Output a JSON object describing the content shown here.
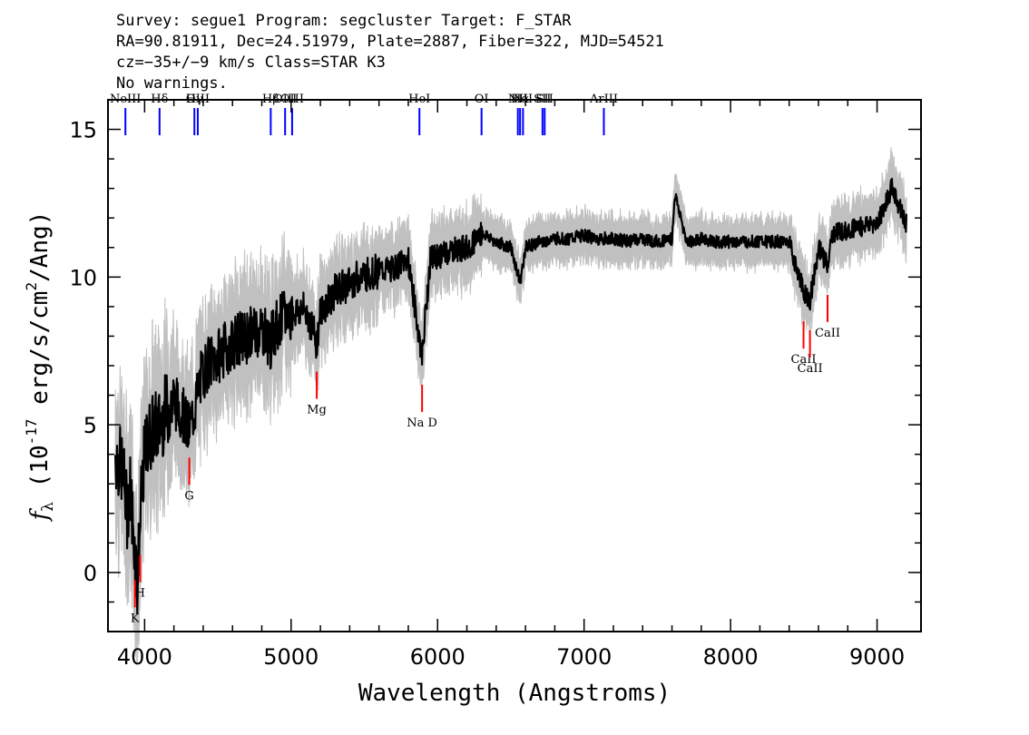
{
  "header": {
    "line1": "Survey: segue1 Program: segcluster Target: F_STAR",
    "line2": "RA=90.81911, Dec=24.51979, Plate=2887, Fiber=322, MJD=54521",
    "line3": "cz=−35+/−9 km/s Class=STAR K3",
    "line4": "No warnings."
  },
  "chart_data": {
    "type": "line",
    "xlabel": "Wavelength (Angstroms)",
    "ylabel": "f_λ (10^-17 erg/s/cm^2/Ang)",
    "xlim": [
      3750,
      9300
    ],
    "ylim": [
      -2,
      16
    ],
    "xticks": [
      4000,
      5000,
      6000,
      7000,
      8000,
      9000
    ],
    "yticks": [
      0,
      5,
      10,
      15
    ],
    "grid": false,
    "colors": {
      "flux": "#000000",
      "error": "#c0c0c0",
      "emission": "#0000ff",
      "absorption": "#ff0000"
    },
    "series": [
      {
        "x": [
          3800,
          3850,
          3880,
          3900,
          3930,
          3950,
          3968,
          3990,
          4020,
          4050,
          4100,
          4150,
          4200,
          4250,
          4300,
          4340,
          4380,
          4420,
          4500,
          4600,
          4700,
          4800,
          4861,
          4900,
          5000,
          5100,
          5175,
          5200,
          5300,
          5400,
          5500,
          5600,
          5700,
          5800,
          5893,
          5950,
          6000,
          6100,
          6200,
          6300,
          6400,
          6500,
          6563,
          6600,
          6700,
          6800,
          6900,
          7000,
          7100,
          7200,
          7300,
          7400,
          7500,
          7600,
          7620,
          7700,
          7800,
          7900,
          8000,
          8100,
          8200,
          8300,
          8400,
          8498,
          8542,
          8600,
          8662,
          8700,
          8800,
          8900,
          9000,
          9100,
          9200
        ],
        "y": [
          4.0,
          3.5,
          2.0,
          3.0,
          1.0,
          -0.3,
          1.5,
          3.5,
          4.5,
          4.8,
          5.0,
          5.5,
          5.8,
          5.5,
          4.8,
          5.5,
          6.5,
          7.0,
          7.3,
          7.8,
          8.0,
          8.3,
          7.8,
          8.4,
          8.8,
          8.9,
          7.8,
          8.8,
          9.5,
          9.8,
          10.1,
          10.2,
          10.3,
          10.6,
          7.3,
          10.6,
          10.7,
          10.9,
          11.0,
          11.5,
          11.2,
          11.0,
          9.8,
          11.0,
          11.2,
          11.3,
          11.3,
          11.4,
          11.3,
          11.3,
          11.2,
          11.3,
          11.2,
          11.3,
          12.8,
          11.2,
          11.3,
          11.2,
          11.2,
          11.2,
          11.2,
          11.2,
          11.2,
          9.5,
          9.2,
          11.0,
          10.4,
          11.5,
          11.6,
          11.7,
          11.8,
          13.0,
          11.8
        ]
      }
    ],
    "emission_lines": [
      {
        "label": "NeIII",
        "wavelength": 3869
      },
      {
        "label": "Hδ",
        "wavelength": 4102
      },
      {
        "label": "Hγ",
        "wavelength": 4340
      },
      {
        "label": "OIII",
        "wavelength": 4363
      },
      {
        "label": "Hβ",
        "wavelength": 4861
      },
      {
        "label": "OIII",
        "wavelength": 4959
      },
      {
        "label": "OIII",
        "wavelength": 5007
      },
      {
        "label": "HeI",
        "wavelength": 5876
      },
      {
        "label": "OI",
        "wavelength": 6300
      },
      {
        "label": "NII",
        "wavelength": 6548
      },
      {
        "label": "Hα",
        "wavelength": 6563
      },
      {
        "label": "NII",
        "wavelength": 6583
      },
      {
        "label": "SII",
        "wavelength": 6716
      },
      {
        "label": "SII",
        "wavelength": 6731
      },
      {
        "label": "ArIII",
        "wavelength": 7135
      }
    ],
    "absorption_lines": [
      {
        "label": "K",
        "wavelength": 3934
      },
      {
        "label": "H",
        "wavelength": 3969
      },
      {
        "label": "G",
        "wavelength": 4305
      },
      {
        "label": "Mg",
        "wavelength": 5175
      },
      {
        "label": "Na D",
        "wavelength": 5894
      },
      {
        "label": "CaII",
        "wavelength": 8498
      },
      {
        "label": "CaII",
        "wavelength": 8542
      },
      {
        "label": "CaII",
        "wavelength": 8662
      }
    ]
  }
}
